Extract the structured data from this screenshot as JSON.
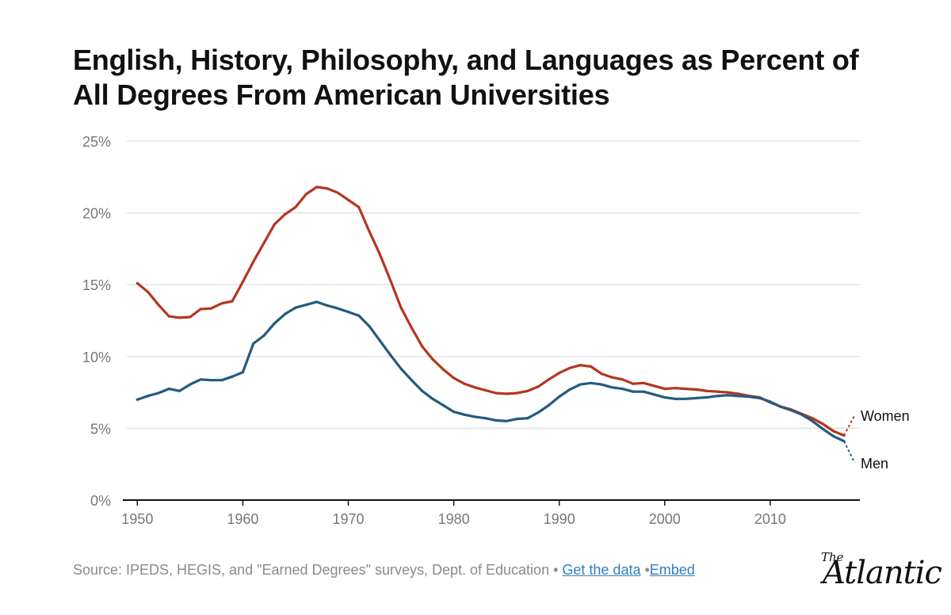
{
  "title_line1": "English, History, Philosophy, and Languages as Percent of",
  "title_line2": "All Degrees From American Universities",
  "footer": {
    "source": "Source: IPEDS, HEGIS, and \"Earned Degrees\" surveys, Dept. of Education",
    "sep1": " • ",
    "get_data": "Get the data",
    "sep2": " •",
    "embed": "Embed"
  },
  "logo": {
    "the": "The",
    "main": "Atlantic"
  },
  "colors": {
    "women": "#b5361f",
    "men": "#245b7f",
    "grid": "#dddddd",
    "axis": "#111111"
  },
  "chart_data": {
    "type": "line",
    "title": "English, History, Philosophy, and Languages as Percent of All Degrees From American Universities",
    "xlabel": "",
    "ylabel": "",
    "xlim": [
      1949,
      2018.5
    ],
    "ylim": [
      0,
      25
    ],
    "x_ticks": [
      1950,
      1960,
      1970,
      1980,
      1990,
      2000,
      2010
    ],
    "x_tick_labels": [
      "1950",
      "1960",
      "1970",
      "1980",
      "1990",
      "2000",
      "2010"
    ],
    "y_ticks": [
      0,
      5,
      10,
      15,
      20,
      25
    ],
    "y_tick_labels": [
      "0%",
      "5%",
      "10%",
      "15%",
      "20%",
      "25%"
    ],
    "grid": true,
    "legend": "inline labels at line ends",
    "series": [
      {
        "name": "Women",
        "x": [
          1950,
          1951,
          1952,
          1953,
          1954,
          1955,
          1956,
          1957,
          1958,
          1959,
          1960,
          1961,
          1962,
          1963,
          1964,
          1965,
          1966,
          1967,
          1968,
          1969,
          1970,
          1971,
          1972,
          1973,
          1974,
          1975,
          1976,
          1977,
          1978,
          1979,
          1980,
          1981,
          1982,
          1983,
          1984,
          1985,
          1986,
          1987,
          1988,
          1989,
          1990,
          1991,
          1992,
          1993,
          1994,
          1995,
          1996,
          1997,
          1998,
          1999,
          2000,
          2001,
          2002,
          2003,
          2004,
          2005,
          2006,
          2007,
          2008,
          2009,
          2010,
          2011,
          2012,
          2013,
          2014,
          2015,
          2016,
          2017
        ],
        "values": [
          15.1,
          14.5,
          13.6,
          12.8,
          12.7,
          12.75,
          13.3,
          13.35,
          13.7,
          13.85,
          15.2,
          16.6,
          17.9,
          19.2,
          19.9,
          20.4,
          21.3,
          21.8,
          21.7,
          21.4,
          20.9,
          20.4,
          18.7,
          17.1,
          15.3,
          13.4,
          12.0,
          10.7,
          9.8,
          9.1,
          8.5,
          8.1,
          7.85,
          7.65,
          7.45,
          7.4,
          7.45,
          7.6,
          7.9,
          8.4,
          8.85,
          9.2,
          9.4,
          9.3,
          8.8,
          8.55,
          8.4,
          8.1,
          8.15,
          7.95,
          7.75,
          7.8,
          7.75,
          7.7,
          7.6,
          7.55,
          7.5,
          7.4,
          7.25,
          7.15,
          6.8,
          6.5,
          6.3,
          6.0,
          5.7,
          5.3,
          4.8,
          4.5
        ],
        "extension": [
          2018,
          5.9
        ]
      },
      {
        "name": "Men",
        "x": [
          1950,
          1951,
          1952,
          1953,
          1954,
          1955,
          1956,
          1957,
          1958,
          1959,
          1960,
          1961,
          1962,
          1963,
          1964,
          1965,
          1966,
          1967,
          1968,
          1969,
          1970,
          1971,
          1972,
          1973,
          1974,
          1975,
          1976,
          1977,
          1978,
          1979,
          1980,
          1981,
          1982,
          1983,
          1984,
          1985,
          1986,
          1987,
          1988,
          1989,
          1990,
          1991,
          1992,
          1993,
          1994,
          1995,
          1996,
          1997,
          1998,
          1999,
          2000,
          2001,
          2002,
          2003,
          2004,
          2005,
          2006,
          2007,
          2008,
          2009,
          2010,
          2011,
          2012,
          2013,
          2014,
          2015,
          2016,
          2017
        ],
        "values": [
          7.0,
          7.25,
          7.45,
          7.75,
          7.6,
          8.05,
          8.4,
          8.35,
          8.35,
          8.6,
          8.9,
          10.9,
          11.45,
          12.3,
          12.95,
          13.4,
          13.6,
          13.8,
          13.55,
          13.35,
          13.1,
          12.85,
          12.1,
          11.1,
          10.1,
          9.15,
          8.35,
          7.6,
          7.05,
          6.6,
          6.15,
          5.95,
          5.8,
          5.7,
          5.55,
          5.5,
          5.65,
          5.7,
          6.1,
          6.6,
          7.2,
          7.7,
          8.05,
          8.15,
          8.05,
          7.85,
          7.75,
          7.55,
          7.55,
          7.35,
          7.15,
          7.05,
          7.05,
          7.1,
          7.15,
          7.25,
          7.3,
          7.25,
          7.2,
          7.1,
          6.85,
          6.5,
          6.25,
          5.95,
          5.5,
          4.95,
          4.45,
          4.1
        ],
        "extension": [
          2018,
          2.6
        ]
      }
    ]
  }
}
